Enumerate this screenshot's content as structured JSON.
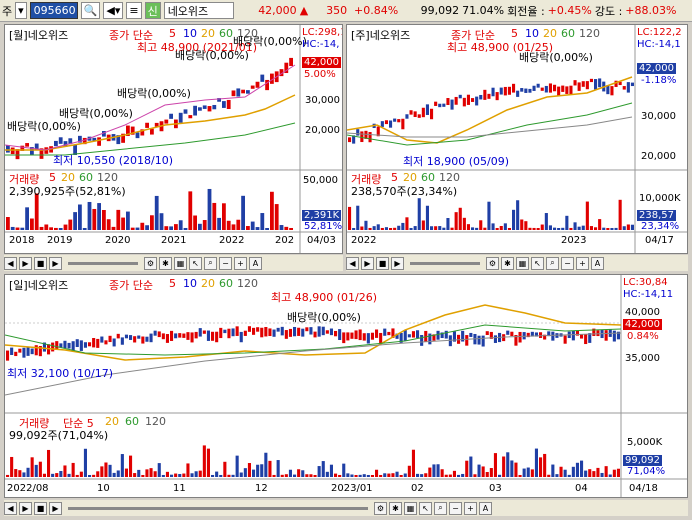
{
  "topbar": {
    "prefix": "주",
    "code": "095660",
    "name": "네오위즈",
    "sin": "신",
    "price": "42,000",
    "price_arrow": "▲",
    "change": "350",
    "change_pct": "+0.84%",
    "volume": "99,092",
    "vol_ratio": "71.04%",
    "turnover_label": "회전율 :",
    "turnover": "+0.45%",
    "strength_label": "강도 :",
    "strength": "+88.03%"
  },
  "monthly": {
    "title": "[월]네오위즈",
    "ma_label": "종가 단순",
    "ma_periods": [
      "5",
      "10",
      "20",
      "60",
      "120"
    ],
    "high": "최고 48,900 (2021/01)",
    "low": "최저 10,550 (2018/10)",
    "div1": "배당락(0,00%)",
    "div2": "배당락(0,00%)",
    "div3": "배당락(0,00%)",
    "div4": "배당락(0,00%)",
    "div5": "배당락(0,00%)",
    "lc": "LC:298,1",
    "hc": "HC:-14,",
    "price_tag": "42,000",
    "pct_tag": "5.00%",
    "axis": [
      "30,000",
      "20,000"
    ],
    "vol_title": "거래량",
    "vol_ma": [
      "5",
      "20",
      "60",
      "120"
    ],
    "vol_value": "2,390,925주(52,81%)",
    "vol_axis": "50,000",
    "vol_tag": "2,391K",
    "vol_pct": "52,81%",
    "x": [
      "2018",
      "2019",
      "2020",
      "2021",
      "2022",
      "202"
    ],
    "date": "04/03"
  },
  "weekly": {
    "title": "[주]네오위즈",
    "ma_label": "종가 단순",
    "ma_periods": [
      "5",
      "10",
      "20",
      "60",
      "120"
    ],
    "high": "최고 48,900 (01/25)",
    "low": "최저 18,900 (05/09)",
    "div": "배당락(0,00%)",
    "lc": "LC:122,2",
    "hc": "HC:-14,1",
    "price_tag": "42,000",
    "pct_tag": "-1.18%",
    "axis": [
      "30,000",
      "20,000"
    ],
    "vol_title": "거래량",
    "vol_ma": [
      "5",
      "20",
      "60",
      "120"
    ],
    "vol_value": "238,570주(23,34%)",
    "vol_axis": "10,000K",
    "vol_tag": "238,57",
    "vol_pct": "23,34%",
    "x": [
      "2022",
      "2023"
    ],
    "date": "04/17"
  },
  "daily": {
    "title": "[일]네오위즈",
    "ma_label": "종가 단순",
    "ma_periods": [
      "5",
      "10",
      "20",
      "60",
      "120"
    ],
    "high": "최고 48,900 (01/26)",
    "low": "최저 32,100 (10/17)",
    "div": "배당락(0,00%)",
    "lc": "LC:30,84",
    "hc": "HC:-14,11",
    "price_tag": "42,000",
    "pct_tag": "0.84%",
    "axis": [
      "40,000",
      "35,000"
    ],
    "vol_title": "거래량",
    "vol_ma": [
      "단순 5",
      "20",
      "60",
      "120"
    ],
    "vol_value": "99,092주(71,04%)",
    "vol_axis": "5,000K",
    "vol_tag": "99,092",
    "vol_pct": "71,04%",
    "x": [
      "2022/08",
      "10",
      "11",
      "12",
      "2023/01",
      "02",
      "03",
      "04"
    ],
    "date": "04/18"
  },
  "controls": {
    "zoom_in": "+",
    "zoom_out": "−",
    "auto": "A"
  }
}
